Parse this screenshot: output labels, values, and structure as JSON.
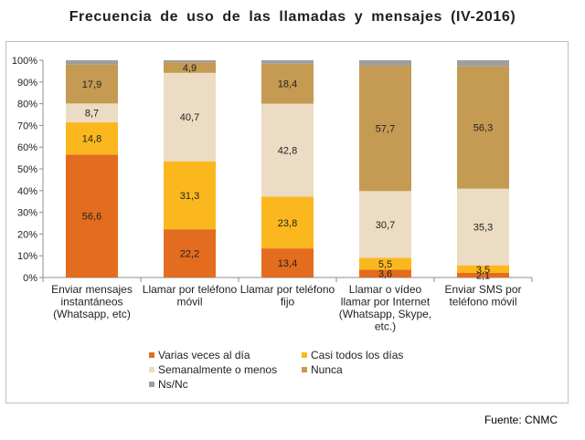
{
  "title": "Frecuencia de uso de las llamadas y mensajes (IV-2016)",
  "source": "Fuente: CNMC",
  "chart_data": {
    "type": "bar",
    "stacked": true,
    "percent": true,
    "title": "Frecuencia de uso de las llamadas y mensajes (IV-2016)",
    "xlabel": "",
    "ylabel": "",
    "ylim": [
      0,
      100
    ],
    "yticks": [
      "0%",
      "10%",
      "20%",
      "30%",
      "40%",
      "50%",
      "60%",
      "70%",
      "80%",
      "90%",
      "100%"
    ],
    "categories": [
      [
        "Enviar mensajes",
        "instantáneos",
        "(Whatsapp, etc)"
      ],
      [
        "Llamar por teléfono",
        "móvil"
      ],
      [
        "Llamar por teléfono",
        "fijo"
      ],
      [
        "Llamar o vídeo",
        "llamar por Internet",
        "(Whatsapp, Skype,",
        "etc.)"
      ],
      [
        "Enviar SMS por",
        "teléfono móvil"
      ]
    ],
    "series": [
      {
        "name": "Varias veces al día",
        "color": "#e36c1e",
        "values": [
          56.6,
          22.2,
          13.4,
          3.6,
          2.1
        ],
        "labels": [
          "56,6",
          "22,2",
          "13,4",
          "3,6",
          "2,1"
        ]
      },
      {
        "name": "Casi todos los días",
        "color": "#fbb81e",
        "values": [
          14.8,
          31.3,
          23.8,
          5.5,
          3.5
        ],
        "labels": [
          "14,8",
          "31,3",
          "23,8",
          "5,5",
          "3,5"
        ]
      },
      {
        "name": "Semanalmente o menos",
        "color": "#ebdcc3",
        "values": [
          8.7,
          40.7,
          42.8,
          30.7,
          35.3
        ],
        "labels": [
          "8,7",
          "40,7",
          "42,8",
          "30,7",
          "35,3"
        ]
      },
      {
        "name": "Nunca",
        "color": "#c59a52",
        "values": [
          17.9,
          4.9,
          18.4,
          57.7,
          56.3
        ],
        "labels": [
          "17,9",
          "4,9",
          "18,4",
          "57,7",
          "56,3"
        ]
      },
      {
        "name": "Ns/Nc",
        "color": "#9e9e9e",
        "values": [
          2.0,
          0.9,
          2.0,
          2.5,
          2.8
        ],
        "labels": [
          "",
          "",
          "",
          "",
          ""
        ]
      }
    ],
    "legend_position": "bottom"
  }
}
